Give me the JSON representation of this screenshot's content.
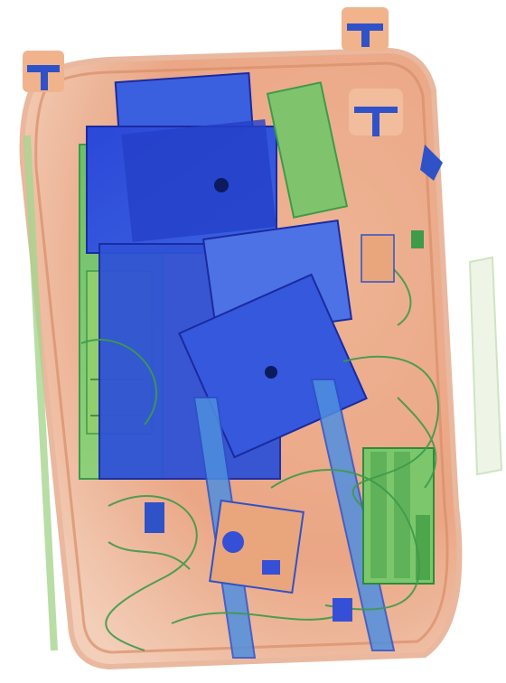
{
  "image": {
    "kind": "x-ray baggage scan",
    "colors": {
      "background": "#ffffff",
      "organic": "#e9a27f",
      "organic_light": "#f3cdb6",
      "mixed": "#79c46c",
      "mixed_dark": "#3f9a4a",
      "inorganic": "#3550d6",
      "inorganic_dark": "#1b2aa0",
      "metal_dense": "#0c1a5e"
    }
  }
}
